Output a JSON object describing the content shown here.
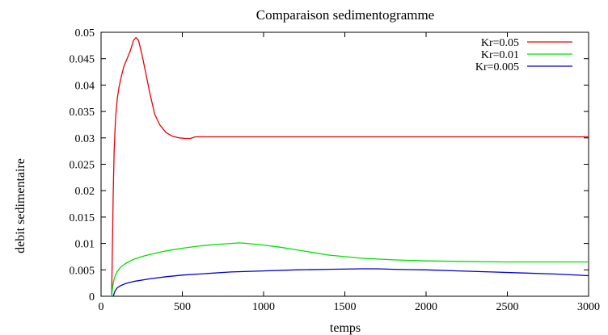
{
  "chart_data": {
    "type": "line",
    "title": "Comparaison sedimentogramme",
    "xlabel": "temps",
    "ylabel": "debit sedimentaire",
    "xlim": [
      0,
      3000
    ],
    "ylim": [
      0,
      0.05
    ],
    "xticks": [
      "0",
      "500",
      "1000",
      "1500",
      "2000",
      "2500",
      "3000"
    ],
    "yticks": [
      "0",
      "0.005",
      "0.01",
      "0.015",
      "0.02",
      "0.025",
      "0.03",
      "0.035",
      "0.04",
      "0.045",
      "0.05"
    ],
    "grid": false,
    "legend_position": "top-right",
    "series": [
      {
        "name": "Kr=0.05",
        "color": "#e8000b",
        "x": [
          65,
          70,
          75,
          80,
          85,
          90,
          100,
          110,
          120,
          140,
          160,
          180,
          200,
          215,
          230,
          250,
          270,
          300,
          330,
          360,
          400,
          440,
          480,
          520,
          550,
          580,
          650,
          800,
          1000,
          1500,
          2000,
          2500,
          3000
        ],
        "y": [
          0,
          0.01,
          0.02,
          0.027,
          0.031,
          0.034,
          0.0375,
          0.0395,
          0.041,
          0.0435,
          0.045,
          0.0465,
          0.0485,
          0.049,
          0.0485,
          0.046,
          0.043,
          0.0385,
          0.0345,
          0.0325,
          0.031,
          0.0303,
          0.03,
          0.0299,
          0.0299,
          0.0302,
          0.0302,
          0.0302,
          0.0302,
          0.0302,
          0.0302,
          0.0302,
          0.0302
        ]
      },
      {
        "name": "Kr=0.01",
        "color": "#00e000",
        "x": [
          65,
          70,
          75,
          80,
          90,
          100,
          120,
          150,
          200,
          250,
          300,
          400,
          500,
          600,
          700,
          800,
          850,
          900,
          1000,
          1100,
          1200,
          1300,
          1400,
          1500,
          1600,
          1800,
          2000,
          2200,
          2500,
          2800,
          3000
        ],
        "y": [
          0,
          0.0015,
          0.0025,
          0.0032,
          0.0041,
          0.0047,
          0.0055,
          0.0062,
          0.007,
          0.0075,
          0.0079,
          0.0086,
          0.0091,
          0.0095,
          0.0098,
          0.01,
          0.0101,
          0.01,
          0.0097,
          0.0093,
          0.0088,
          0.0083,
          0.0078,
          0.0075,
          0.0072,
          0.0069,
          0.0067,
          0.0066,
          0.0065,
          0.0065,
          0.0065
        ]
      },
      {
        "name": "Kr=0.005",
        "color": "#0000cc",
        "x": [
          75,
          80,
          85,
          90,
          100,
          120,
          150,
          200,
          300,
          400,
          500,
          600,
          800,
          1000,
          1200,
          1400,
          1600,
          1700,
          1800,
          2000,
          2200,
          2400,
          2600,
          2800,
          3000
        ],
        "y": [
          0,
          0.0005,
          0.0009,
          0.0012,
          0.0016,
          0.002,
          0.0024,
          0.0028,
          0.0033,
          0.0037,
          0.004,
          0.0042,
          0.0046,
          0.0048,
          0.005,
          0.0051,
          0.0052,
          0.0052,
          0.0051,
          0.005,
          0.0048,
          0.0046,
          0.0044,
          0.0042,
          0.0039
        ]
      }
    ]
  }
}
